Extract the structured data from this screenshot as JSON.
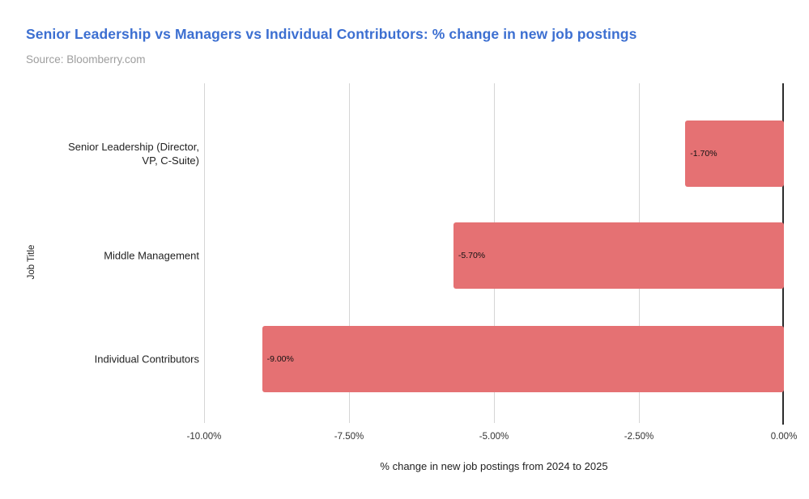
{
  "header": {
    "title": "Senior Leadership vs Managers vs Individual Contributors: % change in new job postings",
    "source": "Source: Bloomberry.com"
  },
  "colors": {
    "title": "#3c6fd1",
    "subtitle": "#9e9e9e",
    "bar": "#e57173",
    "gridline": "#d5d5d5",
    "zero_line": "#2b2b2b"
  },
  "chart_data": {
    "type": "bar",
    "orientation": "horizontal",
    "title": "Senior Leadership vs Managers vs Individual Contributors: % change in new job postings",
    "subtitle": "Source: Bloomberry.com",
    "categories": [
      "Senior Leadership (Director, VP, C-Suite)",
      "Middle Management",
      "Individual Contributors"
    ],
    "values": [
      -1.7,
      -5.7,
      -9.0
    ],
    "value_labels": [
      "-1.70%",
      "-5.70%",
      "-9.00%"
    ],
    "xlabel": "% change in new job postings from 2024 to 2025",
    "ylabel": "Job Title",
    "xlim": [
      -10,
      0
    ],
    "x_ticks": [
      "-10.00%",
      "-7.50%",
      "-5.00%",
      "-2.50%",
      "0.00%"
    ],
    "x_tick_values": [
      -10,
      -7.5,
      -5,
      -2.5,
      0
    ],
    "grid": true,
    "legend": false
  }
}
